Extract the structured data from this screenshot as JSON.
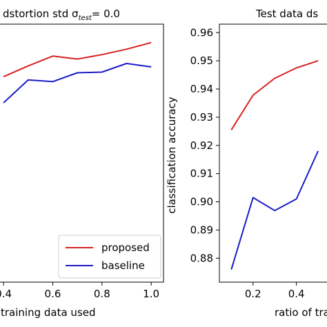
{
  "colors": {
    "proposed": "#d62020",
    "baseline": "#1a1ac8"
  },
  "chart_data": [
    {
      "type": "line",
      "title_main": "dstortion std σ",
      "title_sub": "test",
      "title_tail": "= 0.0",
      "xlabel": "training data used",
      "ylabel": "",
      "xlim": [
        0.38,
        1.05
      ],
      "ylim": [
        0.86,
        0.965
      ],
      "xticks": [
        0.4,
        0.6,
        0.8,
        1.0
      ],
      "xtick_labels": [
        "0.4",
        "0.6",
        "0.8",
        "1.0"
      ],
      "yticks": [],
      "ytick_labels": [],
      "series": [
        {
          "name": "proposed",
          "color": "#d62020",
          "x": [
            0.4,
            0.5,
            0.6,
            0.7,
            0.8,
            0.9,
            1.0
          ],
          "y": [
            0.9436,
            0.948,
            0.952,
            0.9508,
            0.9526,
            0.9548,
            0.9575
          ]
        },
        {
          "name": "baseline",
          "color": "#1a1ac8",
          "x": [
            0.4,
            0.5,
            0.6,
            0.7,
            0.8,
            0.9,
            1.0
          ],
          "y": [
            0.933,
            0.9423,
            0.9416,
            0.9452,
            0.9455,
            0.949,
            0.9476
          ]
        }
      ],
      "legend": {
        "placement": "lower-right",
        "entries": [
          "proposed",
          "baseline"
        ]
      }
    },
    {
      "type": "line",
      "title": "Test data ds",
      "xlabel": "ratio of trai",
      "ylabel": "classification accuracy",
      "xlim": [
        0.045,
        0.56
      ],
      "ylim": [
        0.8715,
        0.963
      ],
      "xticks": [
        0.2,
        0.4
      ],
      "xtick_labels": [
        "0.2",
        "0.4"
      ],
      "yticks": [
        0.88,
        0.89,
        0.9,
        0.91,
        0.92,
        0.93,
        0.94,
        0.95,
        0.96
      ],
      "ytick_labels": [
        "0.88",
        "0.89",
        "0.90",
        "0.91",
        "0.92",
        "0.93",
        "0.94",
        "0.95",
        "0.96"
      ],
      "series": [
        {
          "name": "proposed",
          "color": "#d62020",
          "x": [
            0.1,
            0.2,
            0.3,
            0.4,
            0.5
          ],
          "y": [
            0.9255,
            0.9378,
            0.9438,
            0.9475,
            0.95
          ]
        },
        {
          "name": "baseline",
          "color": "#1a1ac8",
          "x": [
            0.1,
            0.2,
            0.3,
            0.4,
            0.5
          ],
          "y": [
            0.876,
            0.9015,
            0.8969,
            0.901,
            0.918
          ]
        }
      ]
    }
  ]
}
